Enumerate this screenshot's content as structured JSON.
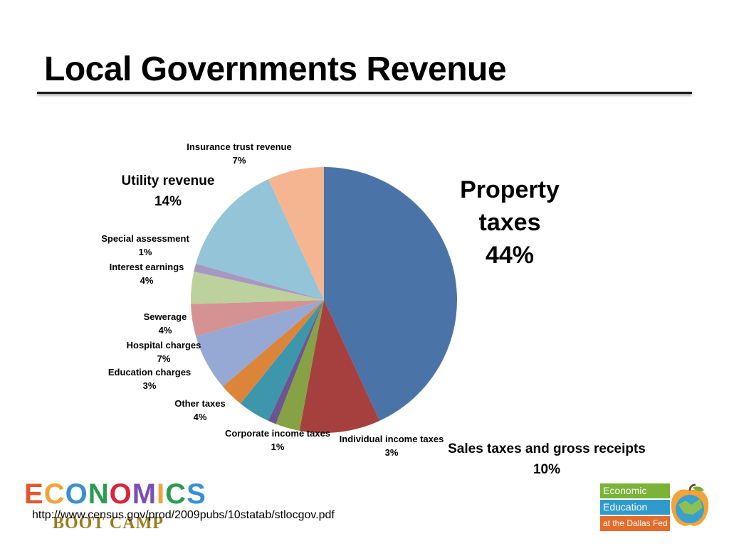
{
  "slide": {
    "title": "Local Governments Revenue",
    "source_url": "http://www.census.gov/prod/2009pubs/10statab/stlocgov.pdf"
  },
  "logos": {
    "left_word": "ECONOMICS",
    "left_sub": "BOOT CAMP",
    "right_line1": "Economic",
    "right_line2": "Education",
    "right_line3": "at the Dallas Fed"
  },
  "chart_data": {
    "type": "pie",
    "title": "",
    "slices": [
      {
        "name": "Property taxes",
        "value": 44,
        "label": "44%",
        "color": "#4a74a8"
      },
      {
        "name": "Sales taxes and gross receipts",
        "value": 10,
        "label": "10%",
        "color": "#a6403e"
      },
      {
        "name": "Individual income taxes",
        "value": 3,
        "label": "3%",
        "color": "#86a244"
      },
      {
        "name": "Corporate income taxes",
        "value": 1,
        "label": "1%",
        "color": "#6a5690"
      },
      {
        "name": "Other taxes",
        "value": 4,
        "label": "4%",
        "color": "#3d96ac"
      },
      {
        "name": "Education charges",
        "value": 3,
        "label": "3%",
        "color": "#dc853a"
      },
      {
        "name": "Hospital charges",
        "value": 7,
        "label": "7%",
        "color": "#95a9d4"
      },
      {
        "name": "Sewerage",
        "value": 4,
        "label": "4%",
        "color": "#d49392"
      },
      {
        "name": "Interest earnings",
        "value": 4,
        "label": "4%",
        "color": "#bcd19b"
      },
      {
        "name": "Special assessment",
        "value": 1,
        "label": "1%",
        "color": "#a897c3"
      },
      {
        "name": "Utility revenue",
        "value": 14,
        "label": "14%",
        "color": "#93c4d7"
      },
      {
        "name": "Insurance trust revenue",
        "value": 7,
        "label": "7%",
        "color": "#f6b591"
      }
    ]
  }
}
